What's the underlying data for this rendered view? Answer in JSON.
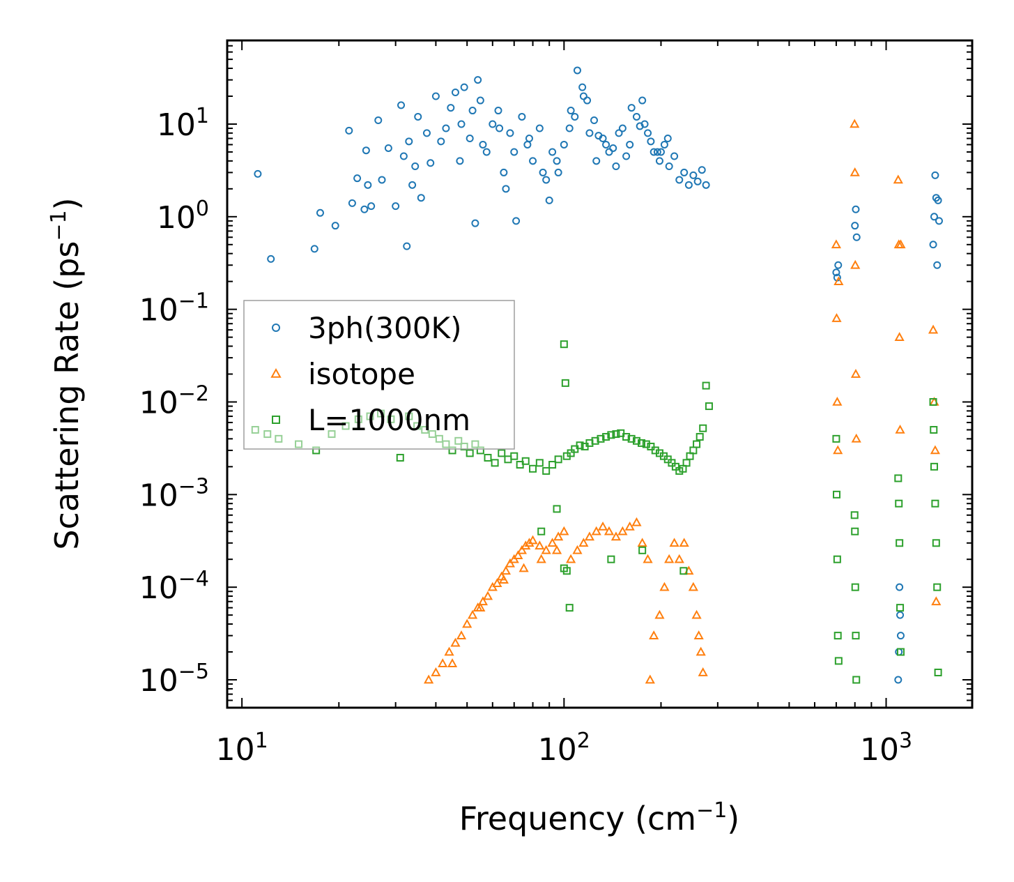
{
  "chart_data": {
    "type": "scatter",
    "title": "",
    "xlabel": "Frequency (cm",
    "xlabel_sup": "−1",
    "xlabel_close": ")",
    "ylabel": "Scattering Rate (ps",
    "ylabel_sup": "−1",
    "ylabel_close": ")",
    "xscale": "log",
    "yscale": "log",
    "xlim": [
      9,
      1850
    ],
    "ylim": [
      5e-06,
      80
    ],
    "x_ticks": [
      {
        "value": 10,
        "base": "10",
        "exp": "1"
      },
      {
        "value": 100,
        "base": "10",
        "exp": "2"
      },
      {
        "value": 1000,
        "base": "10",
        "exp": "3"
      }
    ],
    "y_ticks": [
      {
        "value": 1e-05,
        "base": "10",
        "exp": "−5"
      },
      {
        "value": 0.0001,
        "base": "10",
        "exp": "−4"
      },
      {
        "value": 0.001,
        "base": "10",
        "exp": "−3"
      },
      {
        "value": 0.01,
        "base": "10",
        "exp": "−2"
      },
      {
        "value": 0.1,
        "base": "10",
        "exp": "−1"
      },
      {
        "value": 1,
        "base": "10",
        "exp": "0"
      },
      {
        "value": 10,
        "base": "10",
        "exp": "1"
      }
    ],
    "legend_position": "center-left",
    "series": [
      {
        "name": "3ph(300K)",
        "marker": "circle",
        "color": "#1f77b4",
        "x": [
          11.2,
          12.3,
          16.8,
          17.5,
          19.5,
          21.5,
          22.0,
          22.8,
          24.0,
          24.3,
          24.6,
          25.2,
          26.5,
          27.2,
          28.5,
          30.0,
          31.2,
          31.8,
          32.5,
          33.0,
          33.8,
          34.5,
          35.2,
          36.0,
          37.5,
          38.5,
          40.0,
          41.5,
          43.0,
          44.5,
          46.0,
          47.5,
          49.0,
          51.0,
          53.0,
          55.0,
          57.5,
          60.0,
          62.5,
          65.0,
          68.0,
          71.0,
          74.0,
          77.0,
          80.0,
          84.0,
          88.0,
          92.0,
          96.0,
          100.0,
          105.0,
          110.0,
          115.0,
          120.0,
          126.0,
          132.0,
          138.0,
          145.0,
          152.0,
          160.0,
          168.0,
          175.0,
          182.0,
          190.0,
          198.0,
          205.0,
          212.0,
          220.0,
          228.0,
          236.0,
          244.0,
          252.0,
          260.0,
          268.0,
          276.0,
          48.0,
          52.0,
          56.0,
          63.0,
          70.0,
          78.0,
          86.0,
          95.0,
          104.0,
          114.0,
          124.0,
          135.0,
          148.0,
          162.0,
          178.0,
          195.0,
          210.0,
          54.0,
          66.0,
          90.0,
          108.0,
          118.0,
          128.0,
          142.0,
          156.0,
          172.0,
          186.0,
          200.0,
          700,
          705,
          710,
          800,
          805,
          810,
          1090,
          1095,
          1100,
          1105,
          1110,
          1400,
          1410,
          1420,
          1430,
          1440,
          1450,
          1460
        ],
        "y": [
          2.9,
          0.35,
          0.45,
          1.1,
          0.8,
          8.5,
          1.4,
          2.6,
          1.2,
          5.2,
          2.2,
          1.3,
          11.0,
          2.5,
          5.5,
          1.3,
          16.0,
          4.5,
          0.48,
          6.5,
          2.2,
          3.5,
          12.0,
          1.6,
          8.0,
          3.8,
          20.0,
          6.5,
          9.0,
          15.0,
          22.0,
          4.0,
          25.0,
          7.0,
          0.85,
          18.0,
          5.0,
          10.0,
          14.0,
          3.0,
          8.0,
          0.9,
          12.0,
          6.0,
          4.0,
          9.0,
          2.5,
          5.0,
          3.0,
          6.0,
          14.0,
          38.0,
          20.0,
          8.0,
          4.0,
          7.0,
          5.0,
          3.5,
          9.0,
          6.0,
          12.0,
          18.0,
          8.0,
          5.0,
          4.0,
          6.0,
          3.5,
          4.5,
          2.5,
          3.0,
          2.2,
          2.8,
          2.4,
          3.2,
          2.2,
          10.0,
          14.0,
          6.0,
          9.0,
          5.0,
          7.0,
          3.0,
          4.0,
          9.0,
          25.0,
          11.0,
          6.0,
          8.0,
          15.0,
          10.0,
          5.0,
          7.0,
          30.0,
          2.0,
          1.5,
          12.0,
          18.0,
          7.5,
          5.5,
          4.5,
          9.5,
          6.5,
          5.0,
          0.25,
          0.22,
          0.3,
          0.8,
          1.2,
          0.6,
          1e-05,
          2e-05,
          0.0001,
          5e-05,
          3e-05,
          0.5,
          1.0,
          2.8,
          1.6,
          0.3,
          1.5,
          0.9
        ]
      },
      {
        "name": "isotope",
        "marker": "triangle",
        "color": "#ff7f0e",
        "x": [
          38,
          40,
          42,
          44,
          46,
          48,
          50,
          52,
          54,
          56,
          58,
          60,
          62,
          64,
          66,
          68,
          70,
          72,
          74,
          76,
          78,
          80,
          84,
          88,
          92,
          96,
          100,
          105,
          110,
          115,
          120,
          126,
          132,
          138,
          145,
          152,
          160,
          168,
          175,
          182,
          185,
          190,
          198,
          205,
          212,
          220,
          228,
          236,
          244,
          252,
          258,
          262,
          266,
          270,
          45,
          55,
          65,
          75,
          85,
          95,
          700,
          702,
          705,
          708,
          712,
          798,
          800,
          802,
          805,
          808,
          1090,
          1095,
          1100,
          1105,
          1110,
          1400,
          1410,
          1420,
          1430
        ],
        "y": [
          1e-05,
          1.2e-05,
          1.5e-05,
          2e-05,
          2.5e-05,
          3e-05,
          4e-05,
          5e-05,
          6e-05,
          7e-05,
          8e-05,
          0.0001,
          0.00011,
          0.00013,
          0.00015,
          0.00018,
          0.0002,
          0.00022,
          0.00025,
          0.00028,
          0.0003,
          0.00032,
          0.00028,
          0.00025,
          0.0003,
          0.00035,
          0.0004,
          0.0002,
          0.00025,
          0.0003,
          0.00035,
          0.0004,
          0.00045,
          0.0004,
          0.00035,
          0.0004,
          0.00045,
          0.0005,
          0.0003,
          0.0002,
          1e-05,
          3e-05,
          5e-05,
          0.0001,
          0.0002,
          0.0003,
          0.0002,
          0.0003,
          0.00015,
          0.0001,
          5e-05,
          3e-05,
          2e-05,
          1.2e-05,
          1.5e-05,
          6e-05,
          0.00012,
          0.00016,
          0.0002,
          0.00025,
          0.5,
          0.08,
          0.01,
          0.003,
          0.2,
          10.0,
          3.0,
          0.3,
          0.02,
          0.004,
          2.5,
          0.5,
          0.05,
          0.005,
          0.5,
          0.06,
          0.01,
          0.003,
          7e-05
        ]
      },
      {
        "name": "L=1000nm",
        "marker": "square",
        "color": "#2ca02c",
        "x": [
          11,
          12,
          13,
          15,
          17,
          19,
          21,
          23,
          25,
          27,
          29,
          31,
          33,
          35,
          37,
          39,
          41,
          43,
          45,
          47,
          49,
          51,
          53,
          55,
          58,
          61,
          64,
          67,
          70,
          73,
          76,
          80,
          84,
          88,
          92,
          96,
          100,
          101,
          102,
          105,
          108,
          112,
          116,
          120,
          125,
          130,
          135,
          140,
          145,
          150,
          156,
          162,
          168,
          174,
          180,
          186,
          192,
          198,
          204,
          210,
          216,
          222,
          228,
          234,
          240,
          246,
          252,
          258,
          264,
          270,
          276,
          282,
          100,
          102,
          104,
          85,
          95,
          140,
          175,
          235,
          700,
          702,
          705,
          708,
          712,
          798,
          800,
          802,
          805,
          808,
          1090,
          1095,
          1100,
          1105,
          1110,
          1400,
          1405,
          1410,
          1420,
          1430,
          1440,
          1450
        ],
        "y": [
          0.005,
          0.0045,
          0.004,
          0.0035,
          0.003,
          0.0045,
          0.0055,
          0.0065,
          0.007,
          0.0075,
          0.0065,
          0.0025,
          0.007,
          0.0055,
          0.005,
          0.0045,
          0.004,
          0.0035,
          0.003,
          0.0038,
          0.0033,
          0.0028,
          0.0035,
          0.003,
          0.0025,
          0.0022,
          0.0028,
          0.0024,
          0.0026,
          0.0021,
          0.0023,
          0.0019,
          0.0022,
          0.0018,
          0.0021,
          0.0024,
          0.042,
          0.016,
          0.0026,
          0.0028,
          0.0031,
          0.0034,
          0.0033,
          0.0036,
          0.0038,
          0.004,
          0.0042,
          0.0044,
          0.0045,
          0.0046,
          0.0042,
          0.004,
          0.0038,
          0.0036,
          0.0035,
          0.0033,
          0.003,
          0.0028,
          0.0026,
          0.0024,
          0.0022,
          0.002,
          0.0018,
          0.0019,
          0.0022,
          0.0026,
          0.003,
          0.0035,
          0.0042,
          0.0052,
          0.015,
          0.009,
          0.00016,
          0.00015,
          6e-05,
          0.0004,
          0.0007,
          0.0002,
          0.00025,
          0.00015,
          0.004,
          0.001,
          0.0002,
          3e-05,
          1.6e-05,
          0.0006,
          0.0004,
          0.0001,
          3e-05,
          1e-05,
          0.0015,
          0.0008,
          0.0003,
          6e-05,
          2e-05,
          0.01,
          0.005,
          0.002,
          0.0008,
          0.0003,
          0.0001,
          1.2e-05
        ]
      }
    ]
  }
}
